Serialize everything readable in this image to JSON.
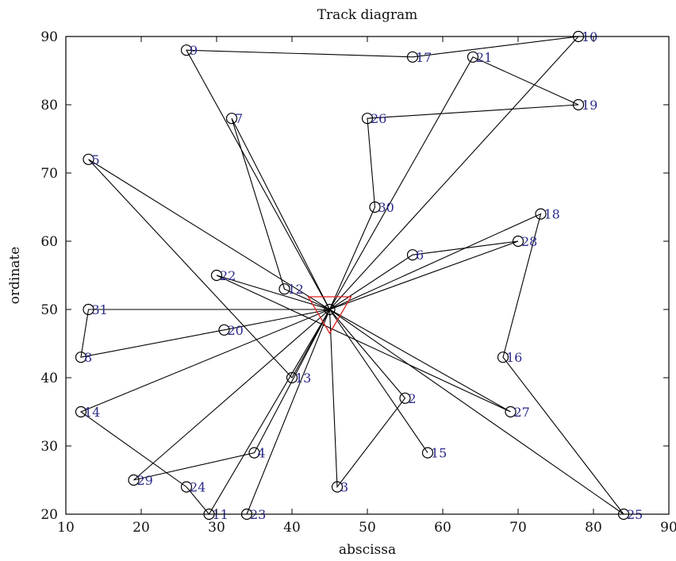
{
  "chart_data": {
    "type": "scatter",
    "title": "Track diagram",
    "xlabel": "abscissa",
    "ylabel": "ordinate",
    "xlim": [
      10,
      90
    ],
    "ylim": [
      20,
      90
    ],
    "xticks": [
      "10",
      "20",
      "30",
      "40",
      "50",
      "60",
      "70",
      "80",
      "90"
    ],
    "yticks": [
      "20",
      "30",
      "40",
      "50",
      "60",
      "70",
      "80",
      "90"
    ],
    "grid": false,
    "depot": {
      "x": 45,
      "y": 50,
      "marker": "downward triangle",
      "color": "#e02020"
    },
    "points": [
      {
        "label": "2",
        "x": 55,
        "y": 37
      },
      {
        "label": "3",
        "x": 46,
        "y": 24
      },
      {
        "label": "4",
        "x": 35,
        "y": 29
      },
      {
        "label": "5",
        "x": 13,
        "y": 72
      },
      {
        "label": "6",
        "x": 56,
        "y": 58
      },
      {
        "label": "7",
        "x": 32,
        "y": 78
      },
      {
        "label": "8",
        "x": 12,
        "y": 43
      },
      {
        "label": "9",
        "x": 26,
        "y": 88
      },
      {
        "label": "10",
        "x": 78,
        "y": 90
      },
      {
        "label": "11",
        "x": 29,
        "y": 20
      },
      {
        "label": "12",
        "x": 39,
        "y": 53
      },
      {
        "label": "13",
        "x": 40,
        "y": 40
      },
      {
        "label": "14",
        "x": 12,
        "y": 35
      },
      {
        "label": "15",
        "x": 58,
        "y": 29
      },
      {
        "label": "16",
        "x": 68,
        "y": 43
      },
      {
        "label": "17",
        "x": 56,
        "y": 87
      },
      {
        "label": "18",
        "x": 73,
        "y": 64
      },
      {
        "label": "19",
        "x": 78,
        "y": 80
      },
      {
        "label": "20",
        "x": 31,
        "y": 47
      },
      {
        "label": "21",
        "x": 64,
        "y": 87
      },
      {
        "label": "22",
        "x": 30,
        "y": 55
      },
      {
        "label": "23",
        "x": 34,
        "y": 20
      },
      {
        "label": "24",
        "x": 26,
        "y": 24
      },
      {
        "label": "25",
        "x": 84,
        "y": 20
      },
      {
        "label": "26",
        "x": 50,
        "y": 78
      },
      {
        "label": "27",
        "x": 69,
        "y": 35
      },
      {
        "label": "28",
        "x": 70,
        "y": 60
      },
      {
        "label": "29",
        "x": 19,
        "y": 25
      },
      {
        "label": "30",
        "x": 51,
        "y": 65
      },
      {
        "label": "31",
        "x": 13,
        "y": 50
      }
    ],
    "routes": [
      [
        "D",
        "30",
        "26",
        "19",
        "21",
        "D"
      ],
      [
        "D",
        "10",
        "17",
        "9",
        "D"
      ],
      [
        "D",
        "7",
        "12",
        "D"
      ],
      [
        "D",
        "5",
        "13",
        "D"
      ],
      [
        "D",
        "22",
        "27",
        "D"
      ],
      [
        "D",
        "31",
        "8",
        "20",
        "D"
      ],
      [
        "D",
        "6",
        "28",
        "D"
      ],
      [
        "D",
        "18",
        "16",
        "25",
        "D"
      ],
      [
        "D",
        "15",
        "D"
      ],
      [
        "D",
        "2",
        "3",
        "D"
      ],
      [
        "D",
        "4",
        "29",
        "D"
      ],
      [
        "D",
        "23",
        "D"
      ],
      [
        "D",
        "14",
        "24",
        "11",
        "D"
      ]
    ]
  }
}
